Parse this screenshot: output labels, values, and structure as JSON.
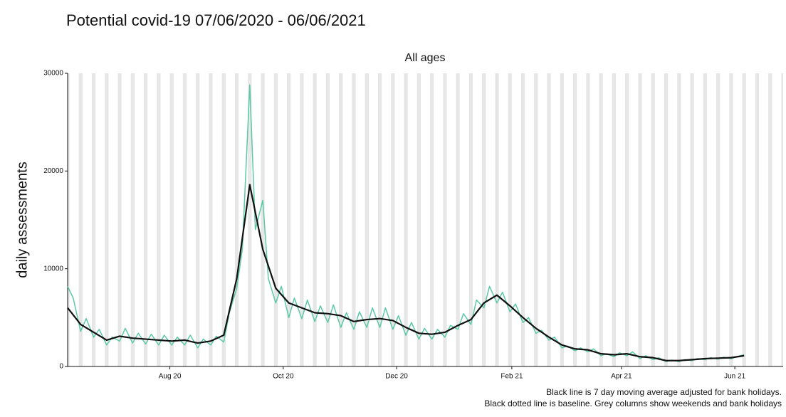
{
  "chart_data": {
    "type": "line",
    "title": "Potential covid-19 07/06/2020 - 06/06/2021",
    "subtitle": "All ages",
    "y_label": "daily assessments",
    "notes": [
      "Black line is 7 day moving average adjusted for bank holidays.",
      "Black dotted line is baseline. Grey columns show weekends and bank holidays"
    ],
    "xlim": [
      "2020-06-07",
      "2021-06-27"
    ],
    "xticks": [
      {
        "value": "2020-08-01",
        "label": "Aug 20"
      },
      {
        "value": "2020-10-01",
        "label": "Oct 20"
      },
      {
        "value": "2020-12-01",
        "label": "Dec 20"
      },
      {
        "value": "2021-02-01",
        "label": "Feb 21"
      },
      {
        "value": "2021-04-01",
        "label": "Apr 21"
      },
      {
        "value": "2021-06-01",
        "label": "Jun 21"
      }
    ],
    "ylim": [
      0,
      30000
    ],
    "yticks": [
      0,
      10000,
      20000,
      30000
    ],
    "weekend_columns": true,
    "series": [
      {
        "color": "#5cc8a8",
        "x": [
          "2020-06-07",
          "2020-06-10",
          "2020-06-14",
          "2020-06-17",
          "2020-06-21",
          "2020-06-24",
          "2020-06-28",
          "2020-07-01",
          "2020-07-05",
          "2020-07-08",
          "2020-07-12",
          "2020-07-15",
          "2020-07-19",
          "2020-07-22",
          "2020-07-26",
          "2020-07-29",
          "2020-08-02",
          "2020-08-05",
          "2020-08-09",
          "2020-08-12",
          "2020-08-16",
          "2020-08-19",
          "2020-08-23",
          "2020-08-26",
          "2020-08-30",
          "2020-09-02",
          "2020-09-06",
          "2020-09-09",
          "2020-09-13",
          "2020-09-16",
          "2020-09-20",
          "2020-09-23",
          "2020-09-27",
          "2020-09-30",
          "2020-10-04",
          "2020-10-07",
          "2020-10-11",
          "2020-10-14",
          "2020-10-18",
          "2020-10-21",
          "2020-10-25",
          "2020-10-28",
          "2020-11-01",
          "2020-11-04",
          "2020-11-08",
          "2020-11-11",
          "2020-11-15",
          "2020-11-18",
          "2020-11-22",
          "2020-11-25",
          "2020-11-29",
          "2020-12-02",
          "2020-12-06",
          "2020-12-09",
          "2020-12-13",
          "2020-12-16",
          "2020-12-20",
          "2020-12-23",
          "2020-12-27",
          "2020-12-30",
          "2021-01-03",
          "2021-01-06",
          "2021-01-10",
          "2021-01-13",
          "2021-01-17",
          "2021-01-20",
          "2021-01-24",
          "2021-01-27",
          "2021-01-31",
          "2021-02-03",
          "2021-02-07",
          "2021-02-10",
          "2021-02-14",
          "2021-02-17",
          "2021-02-21",
          "2021-02-24",
          "2021-02-28",
          "2021-03-03",
          "2021-03-07",
          "2021-03-10",
          "2021-03-14",
          "2021-03-17",
          "2021-03-21",
          "2021-03-24",
          "2021-03-28",
          "2021-03-31",
          "2021-04-04",
          "2021-04-07",
          "2021-04-11",
          "2021-04-14",
          "2021-04-18",
          "2021-04-21",
          "2021-04-25",
          "2021-04-28",
          "2021-05-02",
          "2021-05-05",
          "2021-05-09",
          "2021-05-12",
          "2021-05-16",
          "2021-05-19",
          "2021-05-23",
          "2021-05-26",
          "2021-05-30",
          "2021-06-02",
          "2021-06-06"
        ],
        "values": [
          8200,
          7000,
          3600,
          4900,
          3000,
          3800,
          2200,
          3000,
          2600,
          3900,
          2400,
          3400,
          2300,
          3300,
          2200,
          3200,
          2200,
          3000,
          2200,
          3200,
          1900,
          2800,
          2200,
          3100,
          2500,
          5500,
          8000,
          12000,
          28800,
          14000,
          17000,
          9000,
          6500,
          8200,
          5000,
          7000,
          4900,
          6800,
          4600,
          6200,
          4500,
          6300,
          4000,
          5500,
          3800,
          5600,
          4000,
          6000,
          4000,
          6000,
          3800,
          5200,
          3200,
          4500,
          2800,
          3900,
          2800,
          3800,
          3000,
          4200,
          3800,
          5400,
          4300,
          6800,
          6000,
          8200,
          6500,
          7600,
          5600,
          6400,
          4500,
          5000,
          3400,
          3700,
          2700,
          3000,
          1900,
          2100,
          1600,
          1900,
          1500,
          1800,
          1100,
          1300,
          1000,
          1400,
          1100,
          1500,
          800,
          1100,
          700,
          900,
          500,
          650,
          500,
          700,
          600,
          800,
          700,
          900,
          750,
          950,
          800,
          1000,
          1200
        ]
      },
      {
        "color": "#111111",
        "x": [
          "2020-06-07",
          "2020-06-14",
          "2020-06-21",
          "2020-06-28",
          "2020-07-05",
          "2020-07-12",
          "2020-07-19",
          "2020-07-26",
          "2020-08-02",
          "2020-08-09",
          "2020-08-16",
          "2020-08-23",
          "2020-08-30",
          "2020-09-06",
          "2020-09-13",
          "2020-09-20",
          "2020-09-27",
          "2020-10-04",
          "2020-10-11",
          "2020-10-18",
          "2020-10-25",
          "2020-11-01",
          "2020-11-08",
          "2020-11-15",
          "2020-11-22",
          "2020-11-29",
          "2020-12-06",
          "2020-12-13",
          "2020-12-20",
          "2020-12-27",
          "2021-01-03",
          "2021-01-10",
          "2021-01-17",
          "2021-01-24",
          "2021-01-31",
          "2021-02-07",
          "2021-02-14",
          "2021-02-21",
          "2021-02-28",
          "2021-03-07",
          "2021-03-14",
          "2021-03-21",
          "2021-03-28",
          "2021-04-04",
          "2021-04-11",
          "2021-04-18",
          "2021-04-25",
          "2021-05-02",
          "2021-05-09",
          "2021-05-16",
          "2021-05-23",
          "2021-05-30",
          "2021-06-06"
        ],
        "values": [
          6000,
          4300,
          3500,
          2700,
          3100,
          2900,
          2800,
          2700,
          2600,
          2700,
          2400,
          2600,
          3200,
          9000,
          18600,
          12000,
          8000,
          6500,
          6000,
          5500,
          5400,
          5200,
          4600,
          4800,
          4900,
          4700,
          4000,
          3400,
          3300,
          3500,
          4200,
          4800,
          6500,
          7300,
          6200,
          5000,
          3900,
          3000,
          2200,
          1800,
          1700,
          1300,
          1200,
          1300,
          1000,
          900,
          600,
          600,
          700,
          800,
          850,
          900,
          1100
        ]
      }
    ]
  }
}
